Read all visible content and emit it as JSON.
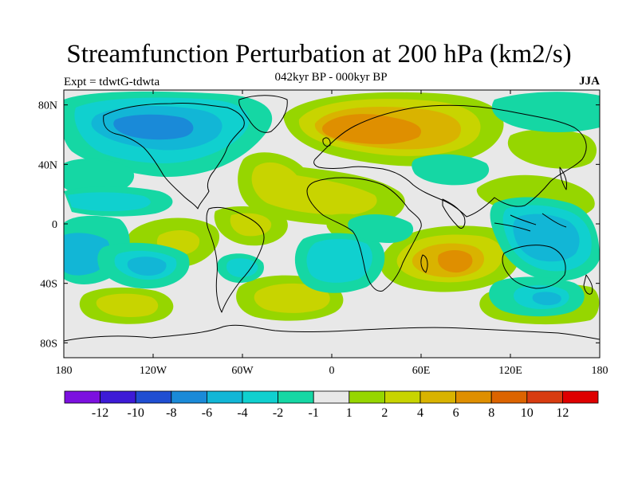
{
  "title": "Streamfunction Perturbation at 200 hPa (km2/s)",
  "subtitle": "042kyr BP - 000kyr BP",
  "experiment_label": "Expt = tdwtG-tdwta",
  "season_label": "JJA",
  "map": {
    "lon_range": [
      -180,
      180
    ],
    "lat_range": [
      -90,
      90
    ],
    "lon_ticks": [
      {
        "value": -180,
        "label": "180"
      },
      {
        "value": -120,
        "label": "120W"
      },
      {
        "value": -60,
        "label": "60W"
      },
      {
        "value": 0,
        "label": "0"
      },
      {
        "value": 60,
        "label": "60E"
      },
      {
        "value": 120,
        "label": "120E"
      },
      {
        "value": 180,
        "label": "180"
      }
    ],
    "lat_ticks": [
      {
        "value": 80,
        "label": "80N"
      },
      {
        "value": 40,
        "label": "40N"
      },
      {
        "value": 0,
        "label": "0"
      },
      {
        "value": -40,
        "label": "40S"
      },
      {
        "value": -80,
        "label": "80S"
      }
    ],
    "background_color": "#e8e8e8"
  },
  "colorbar": {
    "colors": [
      "#7c10df",
      "#3d1ad6",
      "#1f4ed2",
      "#1a8ad8",
      "#12b6d6",
      "#10d0cf",
      "#15d7a4",
      "#e8e8e8",
      "#96d600",
      "#c8d400",
      "#d9b300",
      "#df8f00",
      "#dc6400",
      "#d83c10",
      "#de0000"
    ],
    "labels": [
      "-12",
      "-10",
      "-8",
      "-6",
      "-4",
      "-2",
      "-1",
      "1",
      "2",
      "4",
      "6",
      "8",
      "10",
      "12"
    ]
  }
}
